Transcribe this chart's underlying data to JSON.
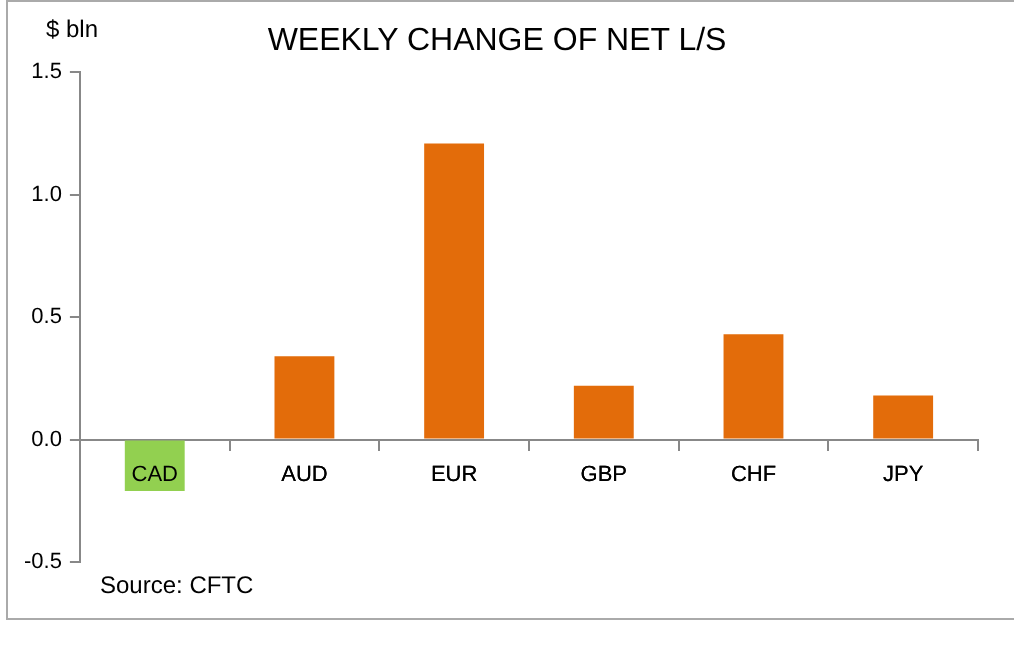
{
  "chart_data": {
    "type": "bar",
    "title": "WEEKLY CHANGE OF NET L/S",
    "ylabel": "$ bln",
    "categories": [
      "CAD",
      "AUD",
      "EUR",
      "GBP",
      "CHF",
      "JPY"
    ],
    "values": [
      -0.21,
      0.34,
      1.21,
      0.22,
      0.43,
      0.18
    ],
    "colors": [
      "#92d050",
      "#e36c0a",
      "#e36c0a",
      "#e36c0a",
      "#e36c0a",
      "#e36c0a"
    ],
    "ylim": [
      -0.5,
      1.5
    ],
    "yticks": [
      {
        "value": -0.5,
        "label": "-0.5"
      },
      {
        "value": 0,
        "label": "0.0"
      },
      {
        "value": 0.5,
        "label": "0.5"
      },
      {
        "value": 1,
        "label": "1.0"
      },
      {
        "value": 1.5,
        "label": "1.5"
      }
    ],
    "grid": false,
    "legend": false,
    "annotations": [
      "Source: CFTC"
    ]
  }
}
